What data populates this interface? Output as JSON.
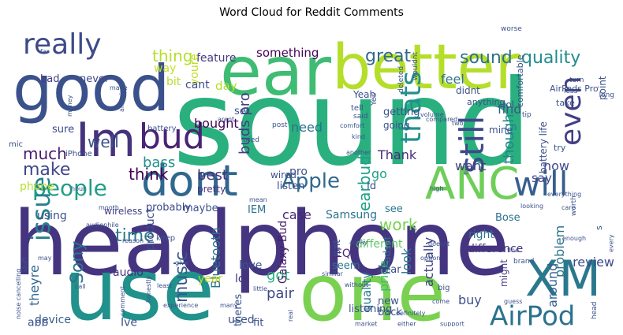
{
  "chart_data": {
    "type": "wordcloud",
    "title": "Word Cloud for Reddit Comments",
    "words": [
      {
        "text": "sound",
        "color": "#2ab07f"
      },
      {
        "text": "headphone",
        "color": "#453581"
      },
      {
        "text": "use",
        "color": "#21918c"
      },
      {
        "text": "one",
        "color": "#7ad151"
      },
      {
        "text": "good",
        "color": "#3b518b"
      },
      {
        "text": "ear",
        "color": "#3fbc73"
      },
      {
        "text": "better",
        "color": "#b5de2b"
      },
      {
        "text": "Im",
        "color": "#46337e"
      },
      {
        "text": "XM",
        "color": "#2a788e"
      },
      {
        "text": "dont",
        "color": "#31688e"
      },
      {
        "text": "really",
        "color": "#3e4a89"
      },
      {
        "text": "will",
        "color": "#355f8d"
      },
      {
        "text": "ANC",
        "color": "#6ece58"
      },
      {
        "text": "bud",
        "color": "#482475"
      },
      {
        "text": "AirPod",
        "color": "#2c728e"
      },
      {
        "text": "still",
        "color": "#3e4989"
      },
      {
        "text": "people",
        "color": "#1f9e89"
      },
      {
        "text": "even",
        "color": "#433e85"
      },
      {
        "text": "Apple",
        "color": "#31688e"
      },
      {
        "text": "issue",
        "color": "#26828e"
      },
      {
        "text": "thats",
        "color": "#21918c"
      },
      {
        "text": "sound",
        "color": "#2d708e"
      },
      {
        "text": "quality",
        "color": "#228c8d"
      },
      {
        "text": "great",
        "color": "#31688e"
      },
      {
        "text": "thing",
        "color": "#b5de2b"
      },
      {
        "text": "something",
        "color": "#450457"
      },
      {
        "text": "feature",
        "color": "#453882"
      },
      {
        "text": "Sony",
        "color": "#2c728e"
      },
      {
        "text": "music",
        "color": "#38588c"
      },
      {
        "text": "time",
        "color": "#2a788e"
      },
      {
        "text": "make",
        "color": "#404688"
      },
      {
        "text": "much",
        "color": "#481b6d"
      },
      {
        "text": "well",
        "color": "#3b528b"
      },
      {
        "text": "think",
        "color": "#440154"
      },
      {
        "text": "bass",
        "color": "#21918c"
      },
      {
        "text": "earbud",
        "color": "#1fa088"
      },
      {
        "text": "buds pro",
        "color": "#433d84"
      },
      {
        "text": "work",
        "color": "#7ad151"
      },
      {
        "text": "got",
        "color": "#2db27d"
      },
      {
        "text": "pair",
        "color": "#3f4889"
      },
      {
        "text": "theyre",
        "color": "#31688e"
      },
      {
        "text": "Bluetooth",
        "color": "#2c728e"
      },
      {
        "text": "Galaxy Bud",
        "color": "#481a6c"
      },
      {
        "text": "though",
        "color": "#26828e"
      },
      {
        "text": "review",
        "color": "#3e4a89"
      },
      {
        "text": "problem",
        "color": "#2c728e"
      },
      {
        "text": "actually",
        "color": "#424086"
      },
      {
        "text": "case",
        "color": "#482878"
      },
      {
        "text": "bought",
        "color": "#440154"
      },
      {
        "text": "best",
        "color": "#46327e"
      },
      {
        "text": "price",
        "color": "#3fbc73"
      },
      {
        "text": "quality",
        "color": "#2a788e"
      },
      {
        "text": "different",
        "color": "#5ec962"
      },
      {
        "text": "Samsung",
        "color": "#2c728e"
      },
      {
        "text": "Thank",
        "color": "#472d7b"
      },
      {
        "text": "want",
        "color": "#433e85"
      },
      {
        "text": "need",
        "color": "#2c728e"
      },
      {
        "text": "go",
        "color": "#1fa088"
      },
      {
        "text": "pro",
        "color": "#3b528b"
      },
      {
        "text": "buy",
        "color": "#3b528b"
      },
      {
        "text": "look",
        "color": "#2a788e"
      },
      {
        "text": "around",
        "color": "#355f8d"
      },
      {
        "text": "now",
        "color": "#3e4989"
      },
      {
        "text": "say",
        "color": "#404688"
      },
      {
        "text": "find",
        "color": "#39568c"
      },
      {
        "text": "feel",
        "color": "#2c728e"
      },
      {
        "text": "day",
        "color": "#b5de2b"
      },
      {
        "text": "youre",
        "color": "#bddf26"
      },
      {
        "text": "way",
        "color": "#c2df23"
      },
      {
        "text": "bit",
        "color": "#b5de2b"
      },
      {
        "text": "cant",
        "color": "#3e4a89"
      },
      {
        "text": "bad",
        "color": "#433e85"
      },
      {
        "text": "never",
        "color": "#3e4989"
      },
      {
        "text": "sure",
        "color": "#3e4989"
      },
      {
        "text": "phone",
        "color": "#b5de2b"
      },
      {
        "text": "using",
        "color": "#3b528b"
      },
      {
        "text": "device",
        "color": "#355f8d"
      },
      {
        "text": "app",
        "color": "#3b528b"
      },
      {
        "text": "audio",
        "color": "#46327e"
      },
      {
        "text": "product",
        "color": "#3e4a89"
      },
      {
        "text": "Ive",
        "color": "#3b528b"
      },
      {
        "text": "used",
        "color": "#3b528b"
      },
      {
        "text": "year",
        "color": "#c2df23"
      },
      {
        "text": "lot",
        "color": "#46327e"
      },
      {
        "text": "love",
        "color": "#3b528b"
      },
      {
        "text": "IEM",
        "color": "#2c728e"
      },
      {
        "text": "EQ",
        "color": "#482475"
      },
      {
        "text": "seem",
        "color": "#2a788e"
      },
      {
        "text": "hear",
        "color": "#3e4a89"
      },
      {
        "text": "new",
        "color": "#3b528b"
      },
      {
        "text": "back",
        "color": "#3b528b"
      },
      {
        "text": "fit",
        "color": "#3b528b"
      },
      {
        "text": "difference",
        "color": "#46327e"
      },
      {
        "text": "Bose",
        "color": "#2c728e"
      },
      {
        "text": "see",
        "color": "#2a788e"
      },
      {
        "text": "right",
        "color": "#2c728e"
      },
      {
        "text": "maybe",
        "color": "#3b528b"
      },
      {
        "text": "wireless",
        "color": "#433e85"
      },
      {
        "text": "probably",
        "color": "#3e4a89"
      },
      {
        "text": "pretty",
        "color": "#46327e"
      },
      {
        "text": "theres",
        "color": "#3b528b"
      },
      {
        "text": "isnt",
        "color": "#39568c"
      },
      {
        "text": "headset",
        "color": "#2c728e"
      },
      {
        "text": "listening",
        "color": "#3b528b"
      },
      {
        "text": "might",
        "color": "#433e85"
      },
      {
        "text": "Id",
        "color": "#3b528b"
      },
      {
        "text": "wired",
        "color": "#3b528b"
      },
      {
        "text": "didnt",
        "color": "#3b528b"
      },
      {
        "text": "lol",
        "color": "#3b528b"
      },
      {
        "text": "Yeah",
        "color": "#3b528b"
      },
      {
        "text": "Yes",
        "color": "#3b528b"
      },
      {
        "text": "getting",
        "color": "#3b528b"
      },
      {
        "text": "going",
        "color": "#3b528b"
      },
      {
        "text": "mine",
        "color": "#3b528b"
      },
      {
        "text": "take",
        "color": "#3b528b"
      },
      {
        "text": "set",
        "color": "#3b528b"
      },
      {
        "text": "worth",
        "color": "#3b528b"
      },
      {
        "text": "battery life",
        "color": "#3b528b"
      },
      {
        "text": "comfortable",
        "color": "#3b528b"
      },
      {
        "text": "AirPods Pro",
        "color": "#3b528b"
      },
      {
        "text": "mic",
        "color": "#3b528b"
      },
      {
        "text": "iPhone",
        "color": "#3b528b"
      },
      {
        "text": "battery",
        "color": "#3b528b"
      },
      {
        "text": "listen",
        "color": "#3b528b"
      },
      {
        "text": "s",
        "color": "#3b528b"
      },
      {
        "text": "anything",
        "color": "#3b528b"
      },
      {
        "text": "tried",
        "color": "#3b528b"
      },
      {
        "text": "point",
        "color": "#3b528b"
      },
      {
        "text": "try",
        "color": "#3b528b"
      },
      {
        "text": "far",
        "color": "#3b528b"
      },
      {
        "text": "deleted",
        "color": "#3b528b"
      },
      {
        "text": "wouldnt",
        "color": "#3b528b"
      },
      {
        "text": "worse",
        "color": "#3b528b"
      },
      {
        "text": "tip",
        "color": "#3b528b"
      },
      {
        "text": "turn",
        "color": "#3b528b"
      },
      {
        "text": "less",
        "color": "#3b528b"
      },
      {
        "text": "long",
        "color": "#3b528b"
      },
      {
        "text": "tell",
        "color": "#3b528b"
      },
      {
        "text": "said",
        "color": "#3b528b"
      },
      {
        "text": "volume",
        "color": "#3b528b"
      },
      {
        "text": "compared",
        "color": "#3b528b"
      },
      {
        "text": "two",
        "color": "#3b528b"
      },
      {
        "text": "post",
        "color": "#3b528b"
      },
      {
        "text": "arent",
        "color": "#3b528b"
      },
      {
        "text": "comfort",
        "color": "#3b528b"
      },
      {
        "text": "amazing",
        "color": "#3b528b"
      },
      {
        "text": "money",
        "color": "#3b528b"
      },
      {
        "text": "made",
        "color": "#3b528b"
      },
      {
        "text": "kind",
        "color": "#3b528b"
      },
      {
        "text": "another",
        "color": "#3b528b"
      },
      {
        "text": "first",
        "color": "#3b528b"
      },
      {
        "text": "everything",
        "color": "#3b528b"
      },
      {
        "text": "care",
        "color": "#3b528b"
      },
      {
        "text": "month",
        "color": "#3b528b"
      },
      {
        "text": "hour",
        "color": "#3b528b"
      },
      {
        "text": "mean",
        "color": "#3b528b"
      },
      {
        "text": "high",
        "color": "#3b528b"
      },
      {
        "text": "looking",
        "color": "#3b528b"
      },
      {
        "text": "alway",
        "color": "#3b528b"
      },
      {
        "text": "audiophile",
        "color": "#3b528b"
      },
      {
        "text": "reason",
        "color": "#3b528b"
      },
      {
        "text": "keep",
        "color": "#3b528b"
      },
      {
        "text": "doesnt",
        "color": "#3b528b"
      },
      {
        "text": "brand",
        "color": "#3b528b"
      },
      {
        "text": "fine",
        "color": "#3b528b"
      },
      {
        "text": "enough",
        "color": "#3b528b"
      },
      {
        "text": "every",
        "color": "#3b528b"
      },
      {
        "text": "option",
        "color": "#3b528b"
      },
      {
        "text": "similar",
        "color": "#3b528b"
      },
      {
        "text": "give",
        "color": "#3b528b"
      },
      {
        "text": "may",
        "color": "#3b528b"
      },
      {
        "text": "stuff",
        "color": "#3b528b"
      },
      {
        "text": "without",
        "color": "#3b528b"
      },
      {
        "text": "least",
        "color": "#3b528b"
      },
      {
        "text": "call",
        "color": "#3b528b"
      },
      {
        "text": "little",
        "color": "#3b528b"
      },
      {
        "text": "big",
        "color": "#3b528b"
      },
      {
        "text": "come",
        "color": "#3b528b"
      },
      {
        "text": "guess",
        "color": "#3b528b"
      },
      {
        "text": "head",
        "color": "#3b528b"
      },
      {
        "text": "noise cancelling",
        "color": "#3b528b"
      },
      {
        "text": "comment",
        "color": "#3b528b"
      },
      {
        "text": "honestly",
        "color": "#3b528b"
      },
      {
        "text": "experience",
        "color": "#3b528b"
      },
      {
        "text": "many",
        "color": "#3b528b"
      },
      {
        "text": "real",
        "color": "#3b528b"
      },
      {
        "text": "definitely",
        "color": "#3b528b"
      },
      {
        "text": "market",
        "color": "#3b528b"
      },
      {
        "text": "either",
        "color": "#3b528b"
      },
      {
        "text": "support",
        "color": "#3b528b"
      },
      {
        "text": "put",
        "color": "#3b528b"
      }
    ]
  }
}
